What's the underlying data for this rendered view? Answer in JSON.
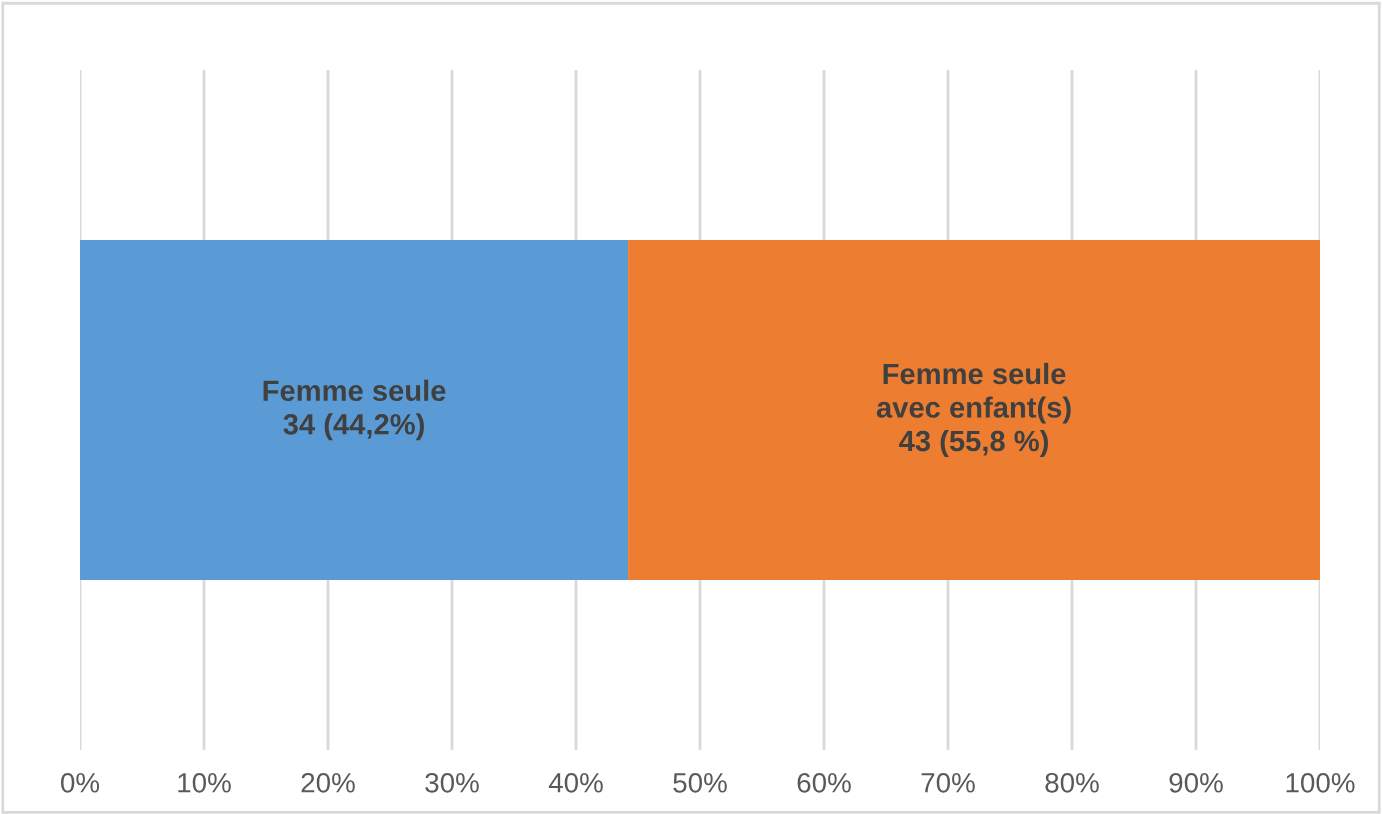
{
  "chart_data": {
    "type": "bar",
    "orientation": "horizontal",
    "stacked": true,
    "categories": [
      null
    ],
    "series": [
      {
        "color": "#5b9bd5",
        "values": [
          44.2
        ],
        "value_labels": [
          "Femme seule\n34 (44,2%)"
        ]
      },
      {
        "color": "#ed7d31",
        "values": [
          55.8
        ],
        "value_labels": [
          "Femme seule\navec enfant(s)\n43 (55,8 %)"
        ]
      }
    ],
    "xlim": [
      0,
      100
    ],
    "xticks": [
      {
        "value": 0,
        "label": "0%"
      },
      {
        "value": 10,
        "label": "10%"
      },
      {
        "value": 20,
        "label": "20%"
      },
      {
        "value": 30,
        "label": "30%"
      },
      {
        "value": 40,
        "label": "40%"
      },
      {
        "value": 50,
        "label": "50%"
      },
      {
        "value": 60,
        "label": "60%"
      },
      {
        "value": 70,
        "label": "70%"
      },
      {
        "value": 80,
        "label": "80%"
      },
      {
        "value": 90,
        "label": "90%"
      },
      {
        "value": 100,
        "label": "100%"
      }
    ],
    "grid": "x",
    "legend": false,
    "tick_labels": "x"
  }
}
